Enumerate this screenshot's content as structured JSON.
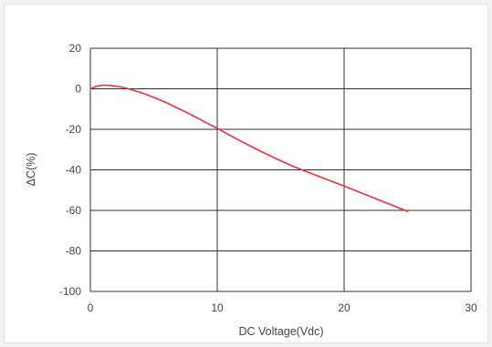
{
  "chart_data": {
    "type": "line",
    "title": "",
    "xlabel": "DC Voltage(Vdc)",
    "ylabel": "ΔC(%)",
    "xlim": [
      0,
      30
    ],
    "ylim": [
      -100,
      20
    ],
    "xticks": [
      0,
      10,
      20,
      30
    ],
    "yticks": [
      20,
      0,
      -20,
      -40,
      -60,
      -80,
      -100
    ],
    "grid": true,
    "legend": "none",
    "series": [
      {
        "color": "#e8323a",
        "x": [
          0,
          0.5,
          1,
          1.5,
          2,
          2.5,
          3,
          4,
          5,
          6,
          7,
          8,
          9,
          10,
          11,
          12,
          13,
          14,
          15,
          16,
          17,
          18,
          19,
          20,
          21,
          22,
          23,
          24,
          25
        ],
        "y": [
          0,
          1.3,
          1.8,
          1.7,
          1.3,
          0.8,
          0.0,
          -1.9,
          -4.2,
          -6.9,
          -9.9,
          -13.0,
          -16.3,
          -19.5,
          -23.0,
          -26.3,
          -29.5,
          -32.6,
          -35.5,
          -38.3,
          -40.8,
          -43.2,
          -45.6,
          -48.0,
          -50.5,
          -53.0,
          -55.5,
          -58.0,
          -60.5
        ]
      }
    ]
  }
}
